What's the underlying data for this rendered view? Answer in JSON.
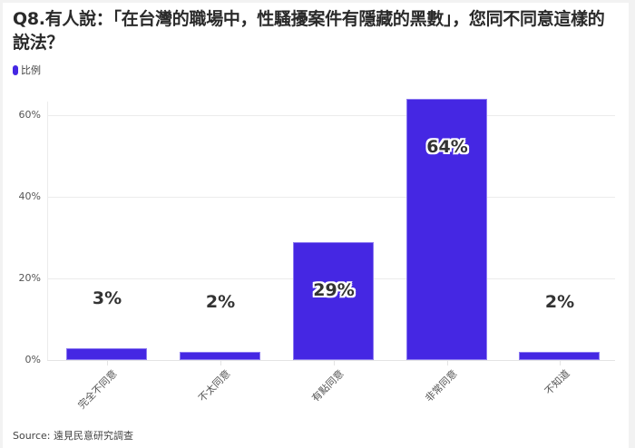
{
  "title": "Q8.有人說：「在台灣的職場中，性騷擾案件有隱藏的黑數」，您同不同意這樣的說法？",
  "legend": {
    "label": "比例",
    "color": "#4527e3"
  },
  "source": "Source: 遠見民意研究調查",
  "y_ticks": [
    "0%",
    "20%",
    "40%",
    "60%"
  ],
  "bars": [
    {
      "label": "完全不同意",
      "value_text": "3%"
    },
    {
      "label": "不太同意",
      "value_text": "2%"
    },
    {
      "label": "有點同意",
      "value_text": "29%"
    },
    {
      "label": "非常同意",
      "value_text": "64%"
    },
    {
      "label": "不知道",
      "value_text": "2%"
    }
  ],
  "chart_data": {
    "type": "bar",
    "title": "Q8.有人說：「在台灣的職場中，性騷擾案件有隱藏的黑數」，您同不同意這樣的說法？",
    "categories": [
      "完全不同意",
      "不太同意",
      "有點同意",
      "非常同意",
      "不知道"
    ],
    "series": [
      {
        "name": "比例",
        "values": [
          3,
          2,
          29,
          64,
          2
        ],
        "color": "#4527e3"
      }
    ],
    "xlabel": "",
    "ylabel": "",
    "ylim": [
      0,
      70
    ],
    "yticks": [
      0,
      20,
      40,
      60
    ],
    "ytick_format": "percent",
    "grid": true,
    "legend_position": "top-left",
    "source": "Source: 遠見民意研究調查"
  }
}
